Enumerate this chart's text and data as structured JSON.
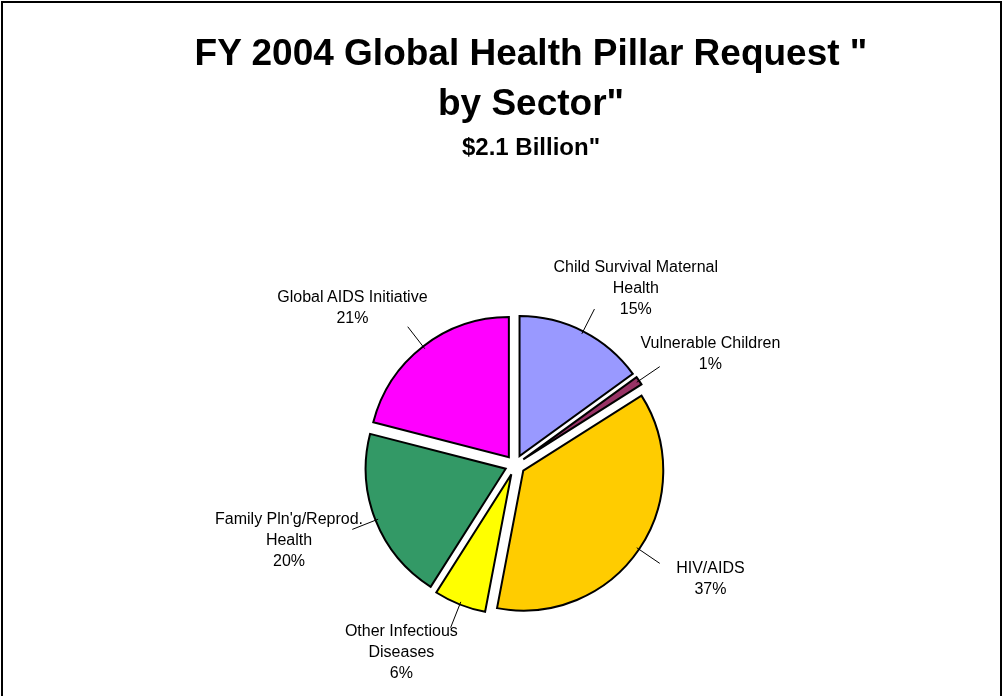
{
  "chart_data": {
    "type": "pie",
    "title": "FY 2004 Global Health Pillar Request \"\nby Sector\"",
    "subtitle": "$2.1 Billion\"",
    "categories": [
      "Child Survival Maternal Health",
      "Vulnerable Children",
      "HIV/AIDS",
      "Other Infectious Diseases",
      "Family Pln'g/Reprod. Health",
      "Global AIDS Initiative"
    ],
    "values": [
      15,
      1,
      37,
      6,
      20,
      21
    ],
    "value_labels": [
      "15%",
      "1%",
      "37%",
      "6%",
      "20%",
      "21%"
    ],
    "colors": [
      "#9999ff",
      "#993366",
      "#ffcc00",
      "#ffff00",
      "#339966",
      "#ff00ff"
    ]
  }
}
